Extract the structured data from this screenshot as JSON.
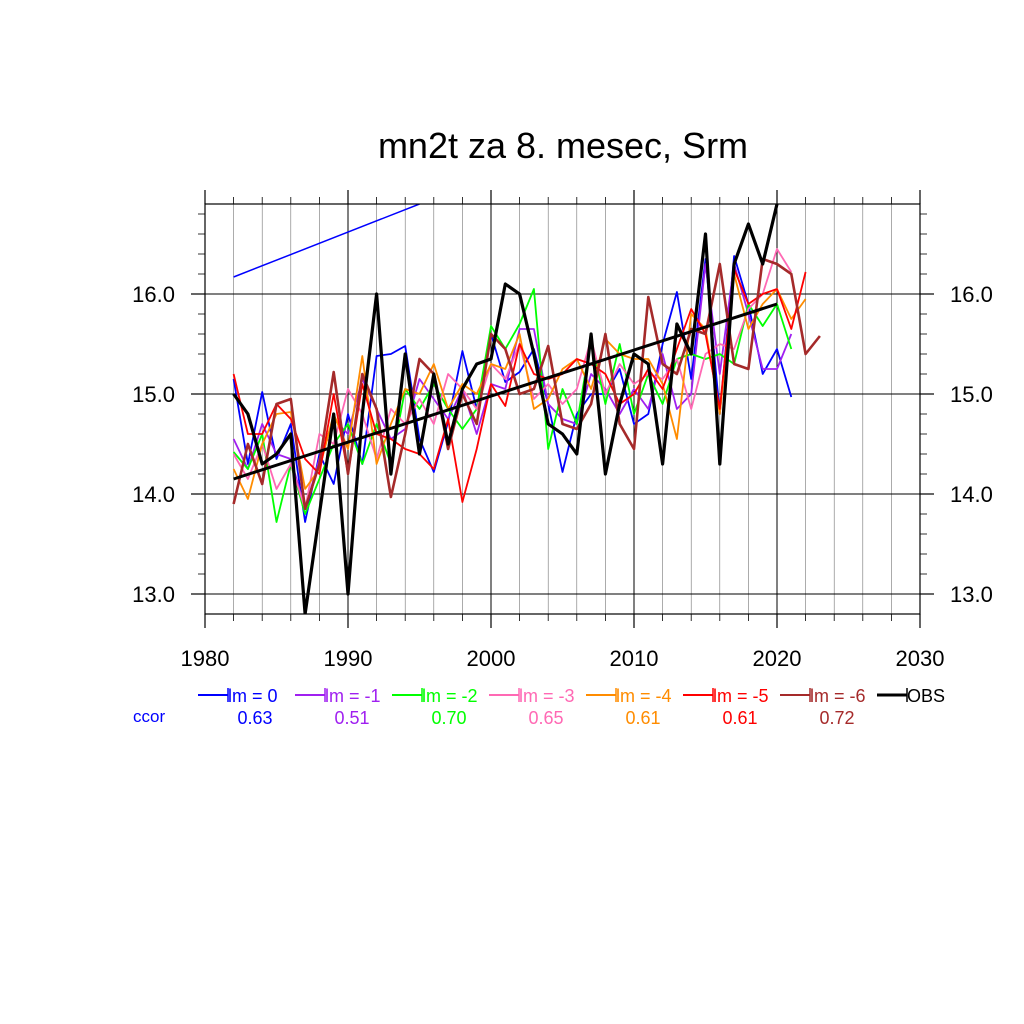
{
  "chart_data": {
    "type": "line",
    "title": "mn2t za 8. mesec, Srm",
    "xlabel": "",
    "ylabel": "",
    "xlim": [
      1980,
      2030
    ],
    "ylim": [
      12.8,
      16.9
    ],
    "x_ticks": [
      1980,
      1990,
      2000,
      2010,
      2020,
      2030
    ],
    "x_tick_labels": [
      "1980",
      "1990",
      "2000",
      "2010",
      "2020",
      "2030"
    ],
    "y_ticks": [
      13.0,
      14.0,
      15.0,
      16.0
    ],
    "y_tick_labels": [
      "13.0",
      "14.0",
      "15.0",
      "16.0"
    ],
    "grid": true,
    "ccor_label": "ccor",
    "ccor_color": "#0000ff",
    "series": [
      {
        "name": "lm = 0",
        "color": "#0000ff",
        "ccor": "0.63",
        "x_start": 1982,
        "values": [
          15.15,
          14.3,
          15.02,
          14.35,
          14.7,
          13.72,
          14.4,
          14.1,
          14.8,
          14.3,
          15.38,
          15.4,
          15.48,
          14.55,
          14.22,
          14.72,
          15.43,
          14.85,
          15.6,
          15.12,
          15.22,
          15.45,
          14.9,
          14.22,
          14.8,
          15.0,
          15.0,
          15.25,
          14.7,
          14.8,
          15.5,
          16.02,
          15.15,
          16.35,
          14.8,
          16.38,
          15.9,
          15.2,
          15.45,
          14.97
        ]
      },
      {
        "name": "lm = -1",
        "color": "#a020f0",
        "ccor": "0.51",
        "x_start": 1982,
        "values": [
          14.55,
          14.25,
          14.7,
          14.4,
          14.35,
          13.85,
          14.35,
          14.75,
          14.6,
          15.15,
          14.85,
          14.55,
          14.65,
          15.15,
          14.95,
          14.75,
          15.05,
          14.6,
          15.1,
          15.05,
          15.65,
          15.65,
          14.9,
          14.75,
          14.7,
          15.2,
          15.05,
          14.8,
          15.05,
          14.85,
          15.4,
          14.85,
          15.0,
          16.3,
          15.2,
          16.3,
          15.8,
          15.25,
          15.25,
          15.6
        ]
      },
      {
        "name": "lm = -2",
        "color": "#00ff00",
        "ccor": "0.70",
        "x_start": 1982,
        "values": [
          14.42,
          14.25,
          14.6,
          13.72,
          14.3,
          13.8,
          14.15,
          14.5,
          14.7,
          14.3,
          14.7,
          14.3,
          15.05,
          14.85,
          15.1,
          14.85,
          14.65,
          14.85,
          15.68,
          15.45,
          15.7,
          16.05,
          14.45,
          15.05,
          14.7,
          15.55,
          14.9,
          15.5,
          14.8,
          15.2,
          14.9,
          15.35,
          15.4,
          15.35,
          15.4,
          15.3,
          15.9,
          15.68,
          15.9,
          15.45
        ]
      },
      {
        "name": "lm = -3",
        "color": "#ff69b4",
        "ccor": "0.65",
        "x_start": 1982,
        "values": [
          14.4,
          14.15,
          14.5,
          14.05,
          14.3,
          13.85,
          14.6,
          14.5,
          15.05,
          14.8,
          14.35,
          14.85,
          14.7,
          14.95,
          14.7,
          15.2,
          15.05,
          14.85,
          15.3,
          15.15,
          15.5,
          14.95,
          15.1,
          14.9,
          15.05,
          15.55,
          15.0,
          15.3,
          15.1,
          15.2,
          15.15,
          15.35,
          14.85,
          15.4,
          15.5,
          15.45,
          15.85,
          16.0,
          16.45,
          16.22
        ]
      },
      {
        "name": "lm = -4",
        "color": "#ff8c00",
        "ccor": "0.61",
        "x_start": 1982,
        "values": [
          14.25,
          13.95,
          14.5,
          14.8,
          14.82,
          14.05,
          14.25,
          14.8,
          14.45,
          15.38,
          14.3,
          14.7,
          15.05,
          15.0,
          15.3,
          14.85,
          15.1,
          15.0,
          15.3,
          15.25,
          15.6,
          14.85,
          14.95,
          15.25,
          15.35,
          15.05,
          15.55,
          15.4,
          15.35,
          15.35,
          15.1,
          14.55,
          15.8,
          15.65,
          14.8,
          16.2,
          15.65,
          15.9,
          16.05,
          15.75,
          15.95
        ]
      },
      {
        "name": "lm = -5",
        "color": "#ff0000",
        "ccor": "0.61",
        "x_start": 1982,
        "values": [
          15.2,
          14.6,
          14.6,
          14.9,
          14.75,
          14.35,
          14.2,
          15.0,
          14.2,
          15.1,
          14.6,
          14.55,
          14.45,
          14.4,
          14.25,
          14.75,
          13.92,
          14.45,
          15.1,
          14.88,
          15.5,
          15.2,
          15.15,
          15.2,
          15.35,
          15.3,
          15.2,
          14.9,
          15.0,
          15.25,
          15.05,
          15.45,
          15.85,
          15.6,
          14.85,
          16.25,
          15.9,
          16.0,
          16.05,
          15.65,
          16.22
        ]
      },
      {
        "name": "lm = -6",
        "color": "#a52a2a",
        "ccor": "0.72",
        "x_start": 1982,
        "values": [
          13.9,
          14.5,
          14.1,
          14.9,
          14.95,
          13.85,
          14.3,
          15.22,
          14.2,
          15.2,
          14.85,
          13.97,
          14.6,
          15.35,
          15.2,
          14.45,
          15.0,
          14.7,
          15.6,
          15.45,
          15.0,
          15.05,
          15.48,
          14.7,
          14.65,
          14.9,
          15.6,
          14.7,
          14.45,
          15.97,
          15.3,
          15.2,
          15.65,
          15.6,
          16.3,
          15.3,
          15.25,
          16.35,
          16.3,
          16.2,
          15.4,
          15.58
        ]
      },
      {
        "name": "OBS",
        "color": "#000000",
        "ccor": "",
        "x_start": 1982,
        "values": [
          15.0,
          14.8,
          14.3,
          14.4,
          14.6,
          12.8,
          13.8,
          14.8,
          13.0,
          14.8,
          16.0,
          14.2,
          15.4,
          14.4,
          15.2,
          14.5,
          15.05,
          15.3,
          15.35,
          16.1,
          16.0,
          15.4,
          14.7,
          14.6,
          14.4,
          15.6,
          14.2,
          14.9,
          15.4,
          15.3,
          14.3,
          15.7,
          15.4,
          16.6,
          14.3,
          16.3,
          16.7,
          16.3,
          16.9
        ]
      }
    ],
    "trend_lines": [
      {
        "color": "#000000",
        "x": [
          1982,
          2020
        ],
        "y": [
          14.15,
          15.9
        ]
      },
      {
        "color": "#0000ff",
        "x": [
          1982,
          1995
        ],
        "y": [
          16.17,
          16.9
        ]
      }
    ]
  }
}
